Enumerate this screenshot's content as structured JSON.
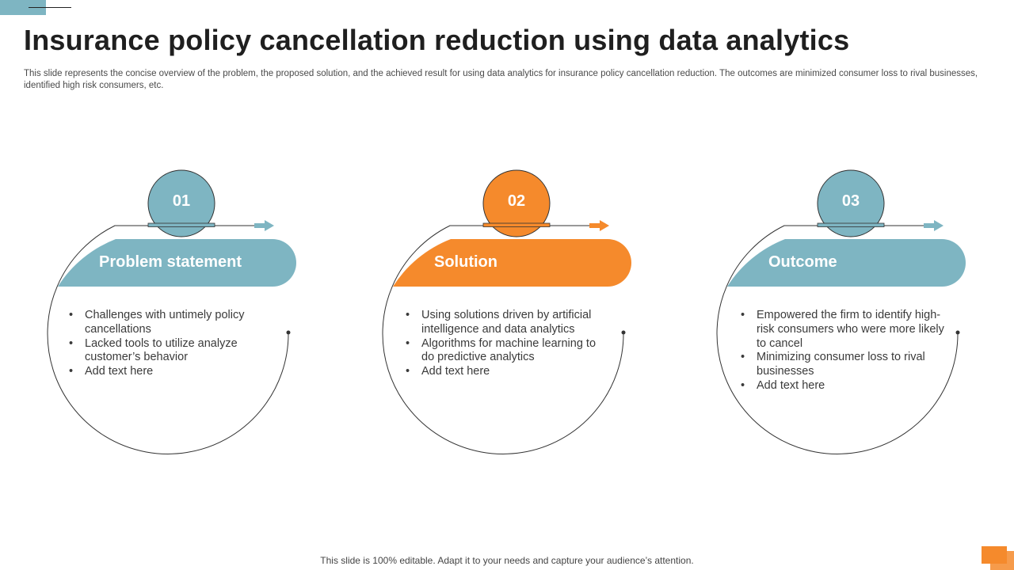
{
  "title": "Insurance policy cancellation reduction using data analytics",
  "subtitle": "This slide represents the concise overview of the problem, the proposed solution, and the achieved result for using data analytics for insurance policy cancellation reduction. The outcomes are minimized consumer loss to rival businesses, identified high risk consumers, etc.",
  "cards": [
    {
      "number": "01",
      "heading": "Problem statement",
      "color": "#7eb5c2",
      "points": [
        "Challenges with untimely policy cancellations",
        "Lacked tools to utilize analyze customer’s behavior",
        "Add text here"
      ]
    },
    {
      "number": "02",
      "heading": "Solution",
      "color": "#f58a2c",
      "points": [
        "Using solutions driven by artificial intelligence and data analytics",
        "Algorithms for machine learning to do predictive analytics",
        "Add text here"
      ]
    },
    {
      "number": "03",
      "heading": "Outcome",
      "color": "#7eb5c2",
      "points": [
        "Empowered the firm to identify high-risk consumers who were more likely to cancel",
        "Minimizing consumer loss to rival businesses",
        "Add text here"
      ]
    }
  ],
  "footer": "This slide is 100% editable. Adapt it to your needs and capture your audience’s attention."
}
